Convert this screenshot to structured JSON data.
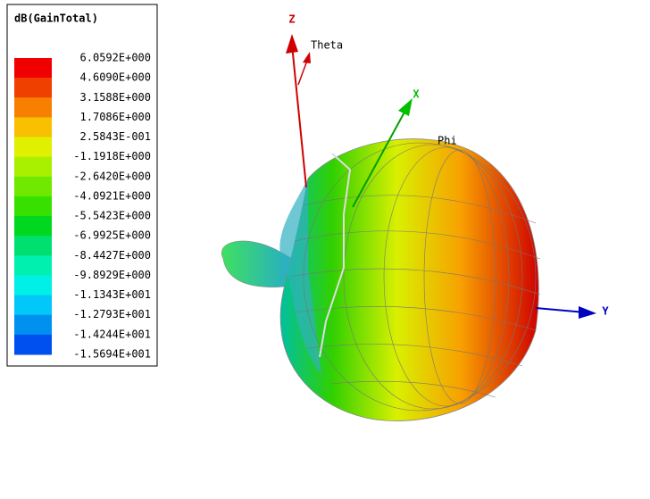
{
  "legend": {
    "title": "dB(GainTotal)",
    "labels": [
      "6.0592E+000",
      "4.6090E+000",
      "3.1588E+000",
      "1.7086E+000",
      "2.5843E-001",
      "-1.1918E+000",
      "-2.6420E+000",
      "-4.0921E+000",
      "-5.5423E+000",
      "-6.9925E+000",
      "-8.4427E+000",
      "-9.8929E+000",
      "-1.1343E+001",
      "-1.2793E+001",
      "-1.4244E+001",
      "-1.5694E+001"
    ],
    "colors": [
      "#f00000",
      "#f04000",
      "#f88000",
      "#f8c000",
      "#e0f000",
      "#a8f000",
      "#70e800",
      "#38e000",
      "#00d820",
      "#00e070",
      "#00f0b0",
      "#00f0e8",
      "#00c8f8",
      "#0090f0",
      "#0050f0"
    ]
  },
  "axes": {
    "z": "Z",
    "x": "X",
    "y": "Y",
    "theta": "Theta",
    "phi": "Phi"
  }
}
